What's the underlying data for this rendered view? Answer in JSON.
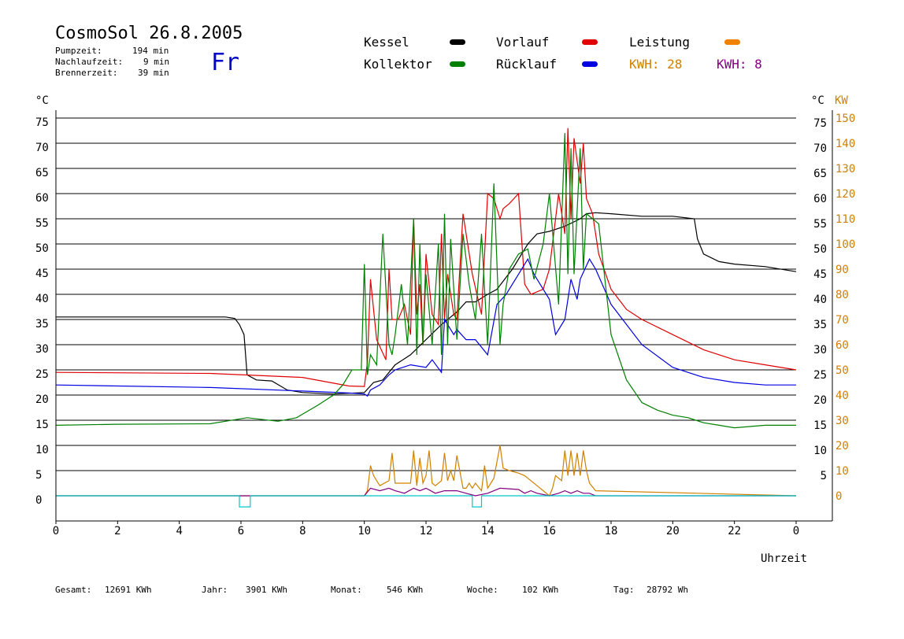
{
  "header": {
    "title": "CosmoSol 26.8.2005",
    "day": "Fr",
    "info": [
      {
        "label": "Pumpzeit:",
        "value": "194 min"
      },
      {
        "label": "Nachlaufzeit:",
        "value": "9 min"
      },
      {
        "label": "Brennerzeit:",
        "value": "39 min"
      }
    ]
  },
  "legend": {
    "kessel": {
      "label": "Kessel",
      "color": "#000000"
    },
    "vorlauf": {
      "label": "Vorlauf",
      "color": "#e00000"
    },
    "leistung": {
      "label": "Leistung",
      "color": "#f08000"
    },
    "kollektor": {
      "label": "Kollektor",
      "color": "#008000"
    },
    "ruecklauf": {
      "label": "Rücklauf",
      "color": "#0000e0"
    },
    "kwh1": {
      "label": "KWH: 28",
      "color": "#d08000"
    },
    "kwh2": {
      "label": "KWH: 8",
      "color": "#800080"
    }
  },
  "footer": {
    "gesamt_label": "Gesamt:",
    "gesamt_value": "12691 KWh",
    "jahr_label": "Jahr:",
    "jahr_value": "3901 KWh",
    "monat_label": "Monat:",
    "monat_value": "546 KWh",
    "woche_label": "Woche:",
    "woche_value": "102 KWh",
    "tag_label": "Tag:",
    "tag_value": "28792 Wh"
  },
  "chart_data": {
    "type": "line",
    "xlabel": "Uhrzeit",
    "ylabel_left": "°C",
    "ylabel_right_temp": "°C",
    "ylabel_right_power": "KW",
    "xlim": [
      0,
      24
    ],
    "ylim": [
      -5,
      75
    ],
    "x_ticks": [
      "0",
      "2",
      "4",
      "6",
      "8",
      "10",
      "12",
      "14",
      "16",
      "18",
      "20",
      "22",
      "0"
    ],
    "y_ticks_left": [
      0,
      5,
      10,
      15,
      20,
      25,
      30,
      35,
      40,
      45,
      50,
      55,
      60,
      65,
      70,
      75
    ],
    "y_ticks_right": [
      5,
      10,
      15,
      20,
      25,
      30,
      35,
      40,
      45,
      50,
      55,
      60,
      65,
      70,
      75
    ],
    "kw_ticks": [
      0,
      10,
      20,
      30,
      40,
      50,
      60,
      70,
      80,
      90,
      100,
      110,
      120,
      130,
      140,
      150
    ],
    "series": [
      {
        "name": "Kessel",
        "color": "#000000",
        "x": [
          0.0,
          5.5,
          5.8,
          5.95,
          6.1,
          6.2,
          6.5,
          7.0,
          7.5,
          8.0,
          9.0,
          10.0,
          10.3,
          10.6,
          11.0,
          11.5,
          12.0,
          12.5,
          13.0,
          13.3,
          13.6,
          14.0,
          14.3,
          14.8,
          15.3,
          15.6,
          16.0,
          16.5,
          17.0,
          17.2,
          17.5,
          18.0,
          19.0,
          20.0,
          20.7,
          20.8,
          21.0,
          21.5,
          22.0,
          23.0,
          24.0
        ],
        "y": [
          35.5,
          35.5,
          35.2,
          34,
          32,
          24,
          23,
          22.8,
          21,
          20.5,
          20.2,
          20.5,
          22.5,
          23,
          26,
          28,
          31,
          34,
          36.5,
          38.5,
          38.5,
          40,
          41,
          45,
          50,
          52,
          52.5,
          53.5,
          55,
          56,
          56.2,
          56,
          55.5,
          55.5,
          55,
          51,
          48,
          46.5,
          46,
          45.5,
          44.5
        ]
      },
      {
        "name": "Vorlauf",
        "color": "#e00000",
        "x": [
          0.0,
          5.0,
          8.0,
          9.5,
          10.0,
          10.1,
          10.2,
          10.4,
          10.7,
          10.8,
          10.9,
          11.1,
          11.3,
          11.5,
          11.6,
          11.7,
          11.8,
          11.9,
          12.0,
          12.2,
          12.4,
          12.5,
          12.6,
          12.7,
          12.9,
          13.0,
          13.2,
          13.5,
          13.8,
          14.0,
          14.2,
          14.4,
          14.5,
          14.7,
          15.0,
          15.2,
          15.4,
          15.8,
          16.0,
          16.3,
          16.5,
          16.6,
          16.7,
          16.8,
          17.0,
          17.1,
          17.2,
          17.4,
          17.6,
          18.0,
          18.5,
          19.0,
          20.0,
          21.0,
          22.0,
          23.0,
          24.0
        ],
        "y": [
          24.5,
          24.3,
          23.5,
          21.8,
          21.7,
          26.5,
          43,
          31,
          27,
          45,
          35,
          35,
          38,
          32,
          55,
          36,
          42,
          30,
          48,
          36,
          34,
          52,
          35,
          44,
          36,
          35,
          56,
          44,
          36,
          60,
          59,
          55,
          57,
          58,
          60,
          42,
          40,
          41,
          45,
          60,
          52,
          73,
          55,
          71,
          62,
          70,
          59,
          56,
          48,
          41,
          37,
          35,
          32,
          29,
          27,
          26,
          25
        ]
      },
      {
        "name": "Rücklauf",
        "color": "#0000e0",
        "x": [
          0.0,
          5.0,
          8.0,
          9.5,
          10.0,
          10.1,
          10.2,
          10.5,
          10.8,
          11.0,
          11.5,
          12.0,
          12.2,
          12.5,
          12.6,
          12.9,
          13.0,
          13.3,
          13.6,
          14.0,
          14.3,
          14.6,
          15.0,
          15.3,
          15.5,
          16.0,
          16.2,
          16.5,
          16.7,
          16.9,
          17.0,
          17.3,
          17.5,
          18.0,
          19.0,
          20.0,
          21.0,
          22.0,
          23.0,
          24.0
        ],
        "y": [
          22,
          21.5,
          20.8,
          20.4,
          20.2,
          19.8,
          21,
          22,
          24,
          25,
          26,
          25.5,
          27,
          24.5,
          35,
          32,
          33,
          31,
          31,
          28,
          38,
          40,
          44,
          47,
          44,
          39,
          32,
          35,
          43,
          39,
          43,
          47,
          45,
          38,
          30,
          25.5,
          23.5,
          22.5,
          22,
          22
        ]
      },
      {
        "name": "Kollektor",
        "color": "#008000",
        "x": [
          0.0,
          2.0,
          5.0,
          6.2,
          7.2,
          7.8,
          8.5,
          9.0,
          9.3,
          9.6,
          9.9,
          10.0,
          10.1,
          10.2,
          10.4,
          10.6,
          10.8,
          10.9,
          11.0,
          11.2,
          11.4,
          11.6,
          11.7,
          11.8,
          11.9,
          12.0,
          12.2,
          12.4,
          12.5,
          12.6,
          12.7,
          12.8,
          13.0,
          13.2,
          13.4,
          13.6,
          13.8,
          14.0,
          14.2,
          14.4,
          14.5,
          14.7,
          15.0,
          15.3,
          15.5,
          15.8,
          16.0,
          16.3,
          16.5,
          16.6,
          16.7,
          16.8,
          17.0,
          17.1,
          17.2,
          17.4,
          17.6,
          18.0,
          18.5,
          19.0,
          19.5,
          20.0,
          20.5,
          21.0,
          21.5,
          22.0,
          23.0,
          24.0
        ],
        "y": [
          14,
          14.2,
          14.3,
          15.5,
          14.8,
          15.5,
          18,
          20,
          22,
          25,
          25,
          46,
          24,
          28,
          26,
          52,
          30,
          28,
          32,
          42,
          30,
          55,
          28,
          50,
          30,
          44,
          30,
          50,
          28,
          56,
          30,
          51,
          31,
          52,
          42,
          35,
          52,
          30,
          62,
          30,
          38,
          45,
          48,
          49,
          43,
          50,
          60,
          38,
          72,
          44,
          69,
          44,
          69,
          45,
          56,
          55,
          54,
          32,
          23,
          18.5,
          17,
          16,
          15.5,
          14.5,
          14,
          13.5,
          14,
          14
        ]
      },
      {
        "name": "Leistung",
        "color": "#d08000",
        "axis": "KW",
        "x": [
          0.0,
          10.0,
          10.1,
          10.2,
          10.3,
          10.5,
          10.8,
          10.9,
          11.0,
          11.3,
          11.5,
          11.6,
          11.7,
          11.8,
          11.9,
          12.0,
          12.1,
          12.2,
          12.3,
          12.5,
          12.6,
          12.7,
          12.8,
          12.9,
          13.0,
          13.2,
          13.3,
          13.4,
          13.5,
          13.6,
          13.8,
          13.9,
          14.0,
          14.1,
          14.2,
          14.4,
          14.5,
          14.7,
          15.0,
          15.2,
          15.4,
          15.6,
          16.0,
          16.1,
          16.2,
          16.4,
          16.5,
          16.6,
          16.7,
          16.8,
          16.9,
          17.0,
          17.1,
          17.2,
          17.3,
          17.5,
          24.0
        ],
        "y": [
          0,
          0,
          2,
          12,
          8,
          4,
          6,
          17,
          5,
          5,
          5,
          18,
          4,
          15,
          5,
          8,
          18,
          5,
          4,
          6,
          17,
          6,
          10,
          6,
          16,
          3,
          3,
          5,
          3,
          5,
          2,
          12,
          3,
          5,
          7,
          20,
          11,
          10,
          9,
          8,
          6,
          4,
          0,
          3,
          8,
          6,
          18,
          8,
          18,
          8,
          17,
          8,
          18,
          10,
          5,
          2,
          0
        ]
      },
      {
        "name": "KWH 8",
        "color": "#800080",
        "axis": "KW",
        "x": [
          0.0,
          10.0,
          10.2,
          10.5,
          10.8,
          11.0,
          11.3,
          11.6,
          11.8,
          12.0,
          12.3,
          12.6,
          13.0,
          13.3,
          13.6,
          14.0,
          14.2,
          14.4,
          15.0,
          15.2,
          15.4,
          15.6,
          16.0,
          16.3,
          16.5,
          16.7,
          16.9,
          17.1,
          17.3,
          17.5,
          24.0
        ],
        "y": [
          0,
          0,
          3,
          2,
          3,
          2,
          1,
          3,
          2,
          3,
          1,
          2,
          2,
          1,
          0,
          1,
          2,
          3,
          2.5,
          1,
          2,
          1,
          0,
          1,
          2,
          1,
          2,
          1,
          1,
          0,
          0
        ]
      },
      {
        "name": "Pumpe",
        "color": "#00c8c8",
        "x": [
          0.0,
          5.95,
          5.95,
          6.3,
          6.3,
          13.5,
          13.5,
          13.8,
          13.8,
          24.0
        ],
        "y": [
          0,
          0,
          -2.2,
          -2.2,
          0,
          0,
          -2.2,
          -2.2,
          0,
          0
        ]
      }
    ]
  }
}
